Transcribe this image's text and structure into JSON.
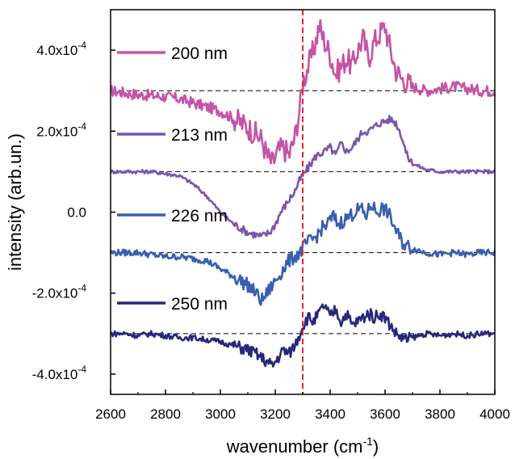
{
  "chart_data": {
    "type": "line",
    "title": "",
    "xlabel": "wavenumber (cm",
    "xlabel_sup": "-1",
    "xlabel_end": ")",
    "ylabel": "intensity (arb.un.)",
    "xlim": [
      2600,
      4000
    ],
    "ylim": [
      -0.00045,
      0.0005
    ],
    "x_ticks": [
      2600,
      2800,
      3000,
      3200,
      3400,
      3600,
      3800,
      4000
    ],
    "x_tick_labels": [
      "2600",
      "2800",
      "3000",
      "3200",
      "3400",
      "3600",
      "3800",
      "4000"
    ],
    "y_ticks": [
      0.0004,
      0.0002,
      0.0,
      -0.0002,
      -0.0004
    ],
    "y_tick_labels": [
      {
        "mantissa": "4.0x10",
        "exp": "-4"
      },
      {
        "mantissa": "2.0x10",
        "exp": "-4"
      },
      {
        "mantissa": "0.0",
        "exp": ""
      },
      {
        "mantissa": "-2.0x10",
        "exp": "-4"
      },
      {
        "mantissa": "-4.0x10",
        "exp": "-4"
      }
    ],
    "vertical_marker": {
      "x": 3300,
      "color": "#e8252a",
      "style": "dashed"
    },
    "grid": false,
    "legend_position": "left, next to each curve",
    "series": [
      {
        "name": "200 nm",
        "color": "#c553a6",
        "baseline": 0.0003,
        "x": [
          2600,
          2650,
          2700,
          2750,
          2800,
          2850,
          2900,
          2950,
          3000,
          3050,
          3100,
          3150,
          3170,
          3190,
          3210,
          3230,
          3250,
          3270,
          3290,
          3300,
          3320,
          3340,
          3360,
          3380,
          3400,
          3420,
          3440,
          3460,
          3480,
          3500,
          3520,
          3540,
          3560,
          3580,
          3600,
          3620,
          3640,
          3660,
          3680,
          3700,
          3750,
          3800,
          3850,
          3900,
          3950,
          4000
        ],
        "y": [
          0.0003,
          0.000295,
          0.00029,
          0.000288,
          0.000285,
          0.00028,
          0.00027,
          0.00026,
          0.00025,
          0.00023,
          0.00021,
          0.00018,
          0.00014,
          0.00012,
          0.00015,
          0.00016,
          0.00014,
          0.00018,
          0.00026,
          0.00032,
          0.00036,
          0.0004,
          0.00046,
          0.00042,
          0.00039,
          0.00034,
          0.00036,
          0.00038,
          0.00036,
          0.0004,
          0.00043,
          0.00038,
          0.00042,
          0.00044,
          0.00046,
          0.0004,
          0.00035,
          0.00033,
          0.00032,
          0.00031,
          0.0003,
          0.000305,
          0.00031,
          0.000305,
          0.0003,
          0.0003
        ]
      },
      {
        "name": "213 nm",
        "color": "#7b55ad",
        "baseline": 0.0001,
        "x": [
          2600,
          2650,
          2700,
          2750,
          2800,
          2850,
          2900,
          2950,
          3000,
          3050,
          3100,
          3150,
          3180,
          3200,
          3220,
          3250,
          3270,
          3290,
          3310,
          3330,
          3350,
          3380,
          3400,
          3420,
          3440,
          3460,
          3480,
          3500,
          3520,
          3540,
          3560,
          3580,
          3600,
          3620,
          3640,
          3660,
          3680,
          3700,
          3750,
          3800,
          3850,
          3900,
          3950,
          4000
        ],
        "y": [
          0.0001,
          0.0001,
          0.0001,
          0.0001,
          9.5e-05,
          9e-05,
          7e-05,
          4e-05,
          0.0,
          -3e-05,
          -5e-05,
          -6e-05,
          -5e-05,
          -3e-05,
          0.0,
          3e-05,
          5e-05,
          8e-05,
          0.0001,
          0.00012,
          0.00014,
          0.00015,
          0.00016,
          0.00014,
          0.00017,
          0.00015,
          0.00016,
          0.00018,
          0.0002,
          0.0002,
          0.00021,
          0.00022,
          0.000225,
          0.00023,
          0.00022,
          0.00019,
          0.00014,
          0.00012,
          0.000105,
          0.0001,
          0.0001,
          0.0001,
          0.0001,
          0.0001
        ]
      },
      {
        "name": "226 nm",
        "color": "#3a5eb0",
        "baseline": -0.0001,
        "x": [
          2600,
          2650,
          2700,
          2750,
          2800,
          2850,
          2900,
          2950,
          3000,
          3050,
          3100,
          3130,
          3150,
          3160,
          3180,
          3200,
          3220,
          3250,
          3270,
          3290,
          3310,
          3330,
          3350,
          3370,
          3390,
          3410,
          3430,
          3450,
          3470,
          3490,
          3510,
          3530,
          3550,
          3570,
          3590,
          3610,
          3630,
          3650,
          3670,
          3700,
          3750,
          3800,
          3850,
          3900,
          3950,
          4000
        ],
        "y": [
          -0.0001,
          -0.0001,
          -0.0001,
          -0.000105,
          -0.00011,
          -0.00011,
          -0.000115,
          -0.00012,
          -0.00014,
          -0.00016,
          -0.00018,
          -0.0002,
          -0.00022,
          -0.00021,
          -0.00019,
          -0.00017,
          -0.00015,
          -0.00012,
          -0.00011,
          -0.0001,
          -8e-05,
          -7e-05,
          -6e-05,
          -4e-05,
          -3e-05,
          -1e-05,
          -3e-05,
          -2e-05,
          -1e-05,
          0.0,
          1e-05,
          -1e-05,
          2e-05,
          0.0,
          1e-05,
          0.0,
          -3e-05,
          -6e-05,
          -8e-05,
          -9e-05,
          -0.0001,
          -0.000105,
          -0.0001,
          -0.000105,
          -0.0001,
          -0.0001
        ]
      },
      {
        "name": "250 nm",
        "color": "#26287a",
        "baseline": -0.0003,
        "x": [
          2600,
          2650,
          2700,
          2750,
          2800,
          2850,
          2900,
          2950,
          3000,
          3050,
          3100,
          3130,
          3150,
          3170,
          3190,
          3210,
          3230,
          3250,
          3270,
          3290,
          3300,
          3320,
          3340,
          3360,
          3380,
          3400,
          3420,
          3440,
          3460,
          3480,
          3500,
          3520,
          3540,
          3560,
          3580,
          3600,
          3620,
          3640,
          3660,
          3680,
          3700,
          3750,
          3800,
          3850,
          3900,
          3950,
          4000
        ],
        "y": [
          -0.0003,
          -0.0003,
          -0.000305,
          -0.0003,
          -0.000305,
          -0.00031,
          -0.00031,
          -0.000315,
          -0.00032,
          -0.00033,
          -0.00034,
          -0.00035,
          -0.00036,
          -0.00037,
          -0.00038,
          -0.00036,
          -0.00034,
          -0.00035,
          -0.00033,
          -0.0003,
          -0.00028,
          -0.00026,
          -0.00027,
          -0.00025,
          -0.00023,
          -0.00026,
          -0.00024,
          -0.00027,
          -0.00025,
          -0.00028,
          -0.00027,
          -0.00026,
          -0.00025,
          -0.00026,
          -0.00025,
          -0.00026,
          -0.00028,
          -0.0003,
          -0.00031,
          -0.000315,
          -0.00031,
          -0.0003,
          -0.000305,
          -0.0003,
          -0.000305,
          -0.0003,
          -0.0003
        ]
      }
    ]
  }
}
